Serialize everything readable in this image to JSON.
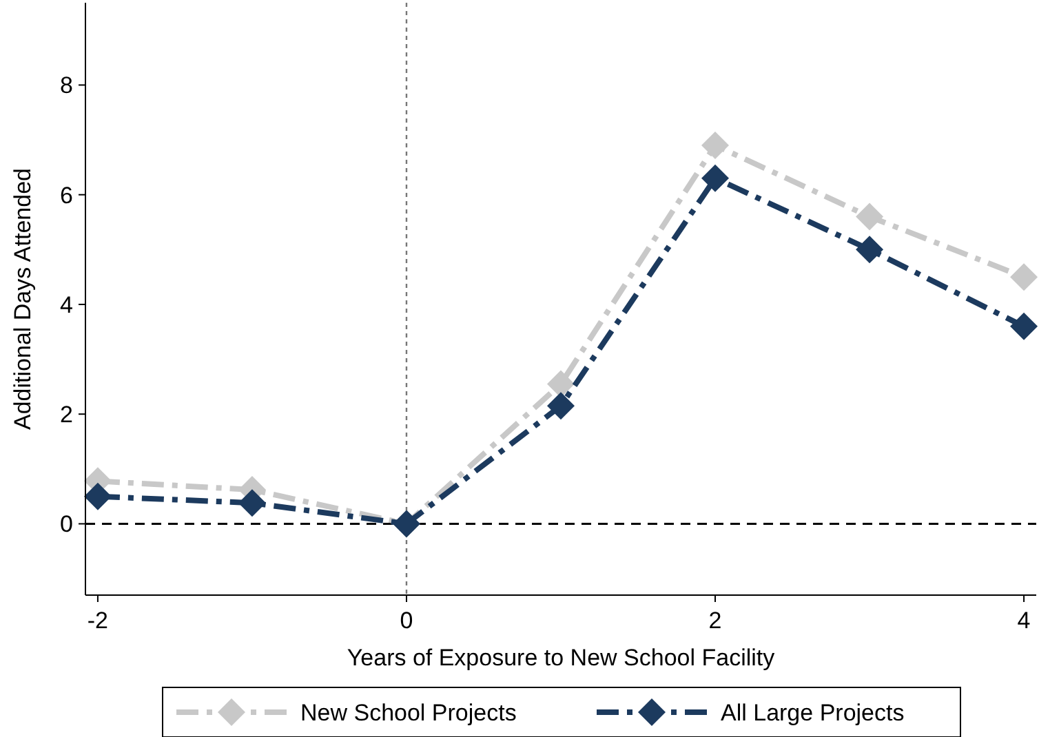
{
  "chart_data": {
    "type": "line",
    "xlabel": "Years of Exposure to New School Facility",
    "ylabel": "Additional Days Attended",
    "x": [
      -2,
      -1,
      0,
      1,
      2,
      3,
      4
    ],
    "series": [
      {
        "name": "New School Projects",
        "color": "#c8c8c8",
        "values": [
          0.78,
          0.62,
          0,
          2.55,
          6.9,
          5.6,
          4.5
        ]
      },
      {
        "name": "All Large Projects",
        "color": "#1c3a5e",
        "values": [
          0.5,
          0.38,
          0,
          2.15,
          6.3,
          5.0,
          3.6
        ]
      }
    ],
    "xlim": [
      -2.08,
      4.08
    ],
    "ylim": [
      -1.3,
      9.5
    ],
    "xticks": [
      -2,
      0,
      2,
      4
    ],
    "yticks": [
      0,
      2,
      4,
      6,
      8
    ],
    "ref_lines": [
      {
        "axis": "y",
        "value": 0,
        "color": "#000000",
        "line_style": "dashed"
      },
      {
        "axis": "x",
        "value": 0,
        "color": "#777777",
        "line_style": "dotted"
      }
    ],
    "marker": "diamond",
    "line_style": "dashed",
    "grid": false,
    "legend": "bottom"
  }
}
